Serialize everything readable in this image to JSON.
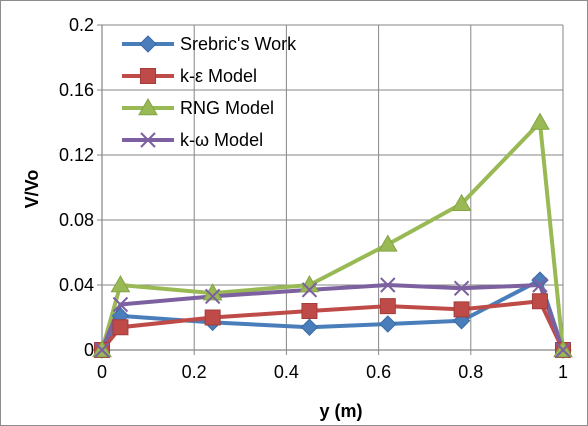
{
  "chart_data": {
    "type": "line",
    "title": "",
    "xlabel": "y  (m)",
    "ylabel": "V/Vo",
    "xlim": [
      0,
      1
    ],
    "ylim": [
      0,
      0.2
    ],
    "xticks": [
      0,
      0.2,
      0.4,
      0.6,
      0.8,
      1
    ],
    "xtick_labels": [
      "0",
      "0.2",
      "0.4",
      "0.6",
      "0.8",
      "1"
    ],
    "yticks": [
      0,
      0.04,
      0.08,
      0.12,
      0.16,
      0.2
    ],
    "ytick_labels": [
      "0",
      "0.04",
      "0.08",
      "0.12",
      "0.16",
      "0.2"
    ],
    "grid": true,
    "legend_position": "top-left",
    "series": [
      {
        "name": "Srebric's Work",
        "color": "#4a7ebb",
        "marker": "diamond",
        "x": [
          0,
          0.04,
          0.24,
          0.45,
          0.62,
          0.78,
          0.95,
          1
        ],
        "y": [
          0,
          0.021,
          0.017,
          0.014,
          0.016,
          0.018,
          0.043,
          0
        ]
      },
      {
        "name": "k-ε Model",
        "color": "#be4b48",
        "marker": "square",
        "x": [
          0,
          0.04,
          0.24,
          0.45,
          0.62,
          0.78,
          0.95,
          1
        ],
        "y": [
          0,
          0.014,
          0.02,
          0.024,
          0.027,
          0.025,
          0.03,
          0
        ]
      },
      {
        "name": "RNG Model",
        "color": "#98b954",
        "marker": "triangle",
        "x": [
          0,
          0.04,
          0.24,
          0.45,
          0.62,
          0.78,
          0.95,
          1
        ],
        "y": [
          0,
          0.04,
          0.035,
          0.04,
          0.065,
          0.09,
          0.14,
          0
        ]
      },
      {
        "name": "k-ω Model",
        "color": "#7d60a0",
        "marker": "x",
        "x": [
          0,
          0.04,
          0.24,
          0.45,
          0.62,
          0.78,
          0.95,
          1
        ],
        "y": [
          0,
          0.028,
          0.033,
          0.037,
          0.04,
          0.038,
          0.04,
          0
        ]
      }
    ]
  }
}
